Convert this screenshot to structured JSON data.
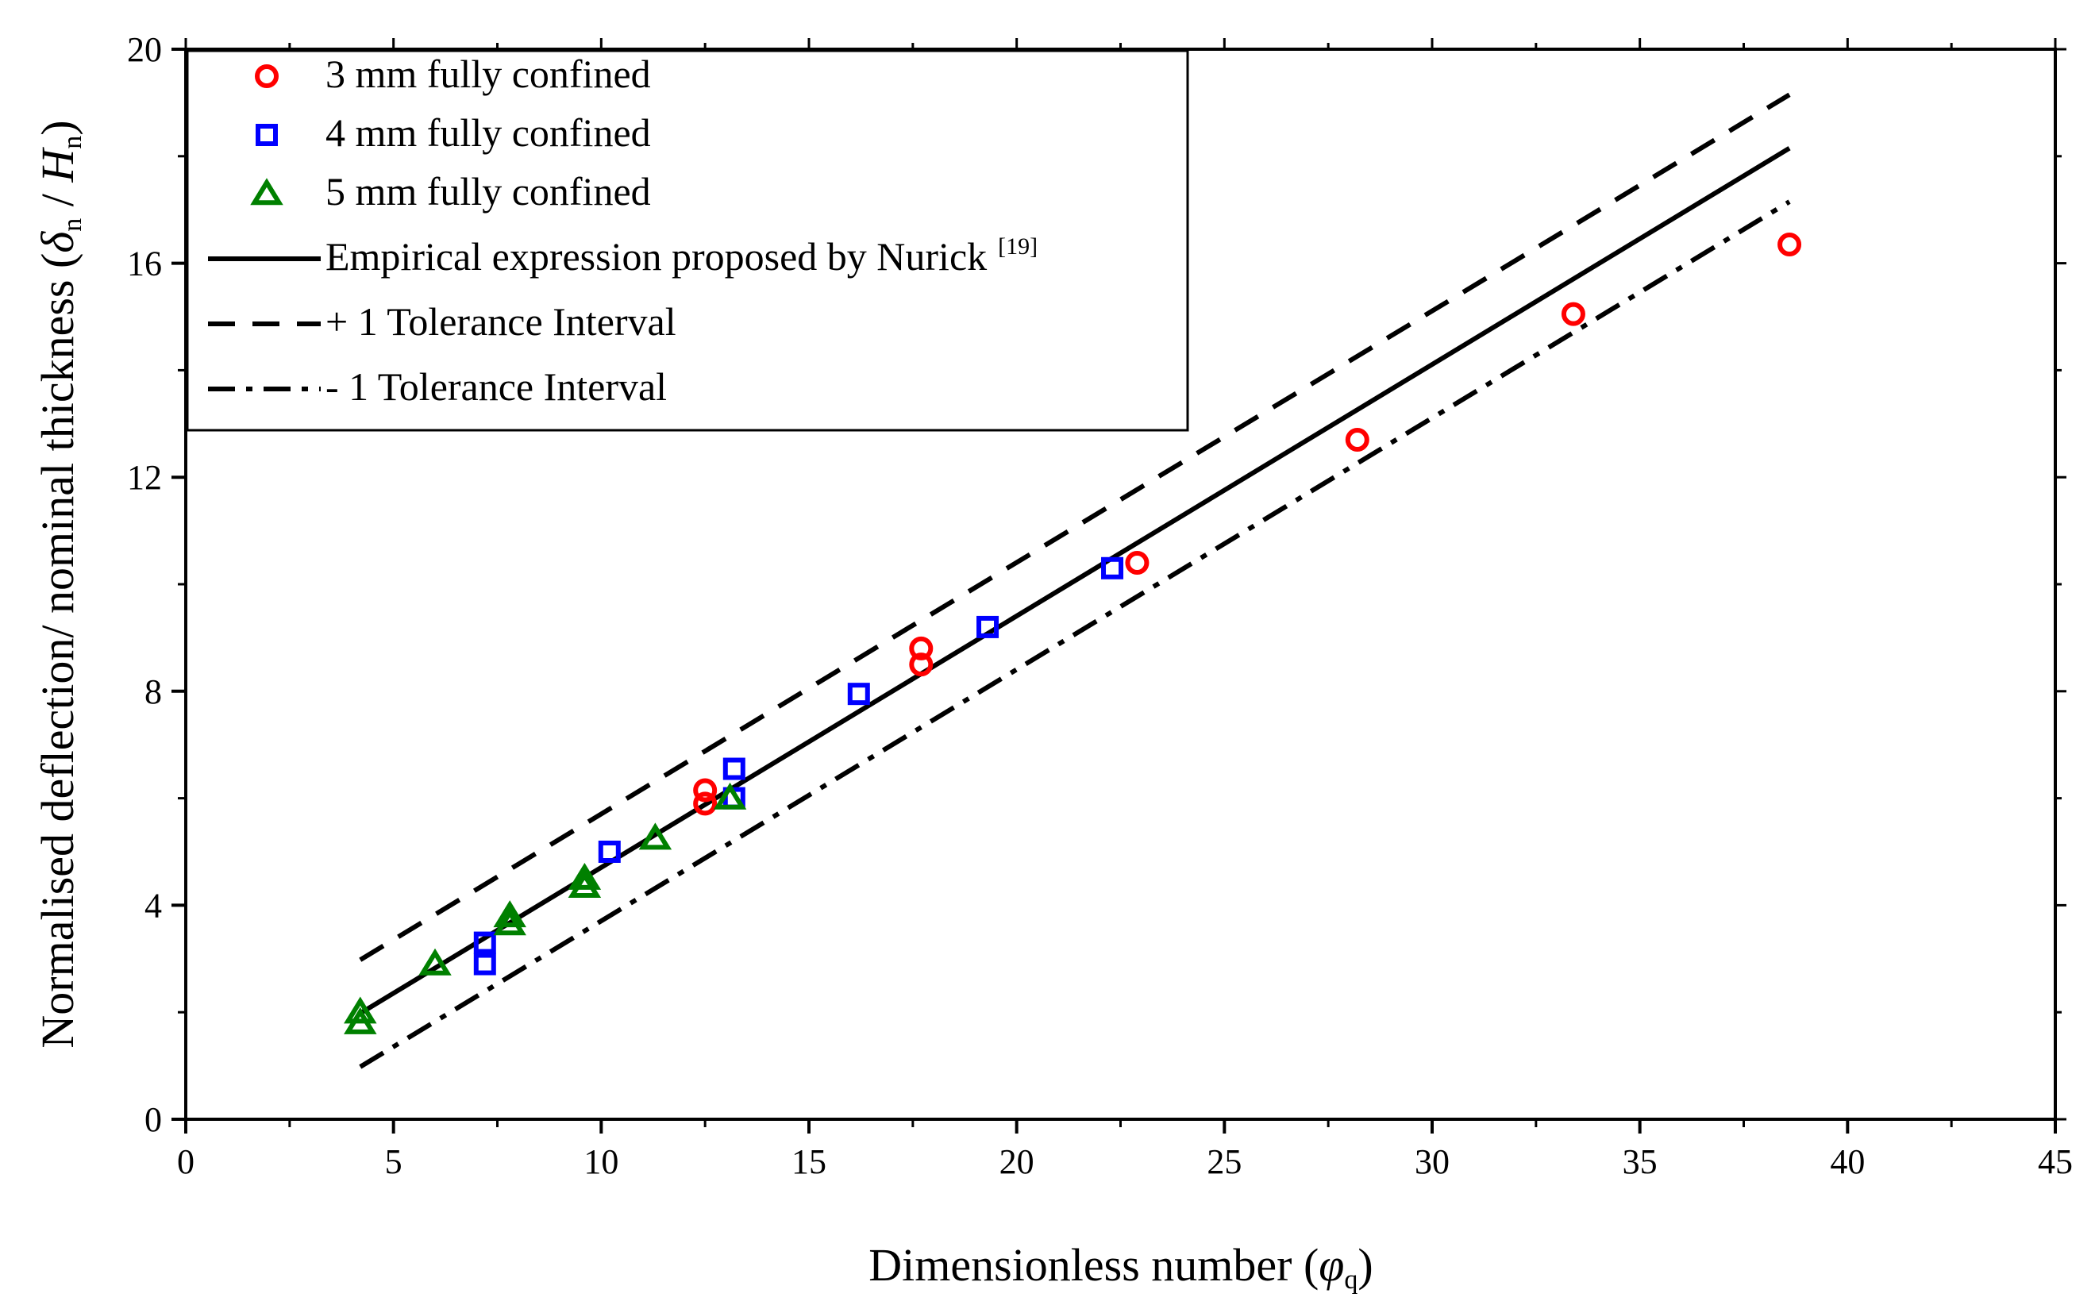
{
  "chart_data": {
    "type": "scatter",
    "title": "",
    "xlabel": {
      "prefix": "Dimensionless number (",
      "symbol": "φ",
      "sub": "q",
      "suffix": ")"
    },
    "ylabel": {
      "prefix": "Normalised deflection/ nominal thickness (",
      "delta": "δ",
      "delta_sub": "n",
      "sep": " / ",
      "h": "H",
      "h_sub": "n",
      "suffix": ")"
    },
    "xlim": [
      0,
      45
    ],
    "ylim": [
      0,
      20
    ],
    "xticks": [
      0,
      5,
      10,
      15,
      20,
      25,
      30,
      35,
      40,
      45
    ],
    "yticks": [
      0,
      4,
      8,
      12,
      16,
      20
    ],
    "series": [
      {
        "name": "3 mm fully confined",
        "marker": "circle",
        "color": "#ff0000",
        "x": [
          12.5,
          12.5,
          17.7,
          17.7,
          22.9,
          28.2,
          33.4,
          38.6
        ],
        "y": [
          6.15,
          5.9,
          8.8,
          8.5,
          10.4,
          12.7,
          15.05,
          16.35
        ]
      },
      {
        "name": "4 mm fully confined",
        "marker": "square",
        "color": "#0000ff",
        "x": [
          7.2,
          7.2,
          10.2,
          13.2,
          13.2,
          16.2,
          19.3,
          22.3
        ],
        "y": [
          3.3,
          2.9,
          5.0,
          6.55,
          6.0,
          7.95,
          9.2,
          10.3
        ]
      },
      {
        "name": "5 mm fully confined",
        "marker": "triangle",
        "color": "#008000",
        "x": [
          4.2,
          4.2,
          6.0,
          7.8,
          7.8,
          9.6,
          9.6,
          11.3,
          13.1
        ],
        "y": [
          2.0,
          1.8,
          2.9,
          3.8,
          3.65,
          4.5,
          4.35,
          5.25,
          6.0
        ]
      }
    ],
    "lines": [
      {
        "name": "Empirical expression proposed by Nurick",
        "ref": "[19]",
        "style": "solid",
        "color": "#000000",
        "x": [
          4.2,
          38.6
        ],
        "y": [
          1.98,
          18.15
        ]
      },
      {
        "name": "+ 1 Tolerance Interval",
        "style": "dash",
        "color": "#000000",
        "x": [
          4.2,
          38.6
        ],
        "y": [
          2.98,
          19.15
        ]
      },
      {
        "name": "- 1 Tolerance Interval",
        "style": "dashdot",
        "color": "#000000",
        "x": [
          4.2,
          38.6
        ],
        "y": [
          0.98,
          17.15
        ]
      }
    ],
    "legend_position": "top-left"
  }
}
